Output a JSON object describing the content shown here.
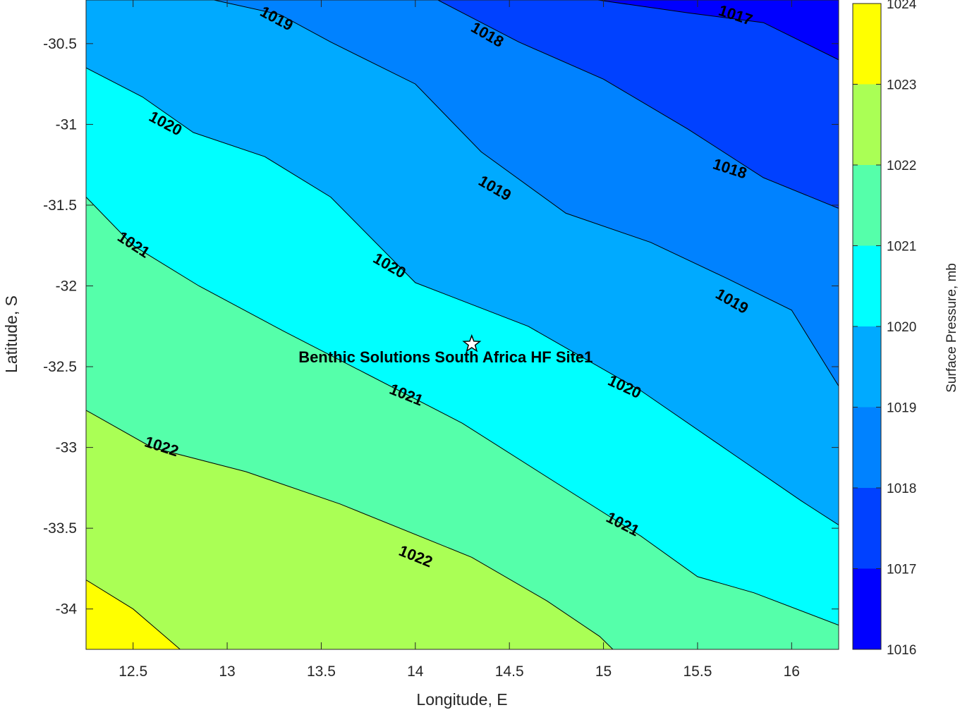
{
  "chart_data": {
    "type": "contour",
    "xlabel": "Longitude, E",
    "ylabel": "Latitude, S",
    "xlim": [
      12.25,
      16.25
    ],
    "ylim": [
      -34.25,
      -30.23
    ],
    "xticks": [
      12.5,
      13,
      13.5,
      14,
      14.5,
      15,
      15.5,
      16
    ],
    "xtick_labels": [
      "12.5",
      "13",
      "13.5",
      "14",
      "14.5",
      "15",
      "15.5",
      "16"
    ],
    "yticks": [
      -30.5,
      -31,
      -31.5,
      -32,
      -32.5,
      -33,
      -33.5,
      -34
    ],
    "ytick_labels": [
      "-30.5",
      "-31",
      "-31.5",
      "-32",
      "-32.5",
      "-33",
      "-33.5",
      "-34"
    ],
    "colorbar": {
      "label": "Surface Pressure, mb",
      "min": 1016,
      "max": 1024,
      "ticks": [
        1016,
        1017,
        1018,
        1019,
        1020,
        1021,
        1022,
        1023,
        1024
      ],
      "tick_labels": [
        "1016",
        "1017",
        "1018",
        "1019",
        "1020",
        "1021",
        "1022",
        "1023",
        "1024"
      ],
      "colors": [
        "#0000ff",
        "#0041ff",
        "#0082ff",
        "#00aaff",
        "#00ffff",
        "#55ffaa",
        "#aaff55",
        "#ffff00",
        "#ffaa00",
        "#ff5500"
      ]
    },
    "levels": [
      {
        "value": 1017,
        "points": [
          [
            14.97,
            -30.23
          ],
          [
            15.45,
            -30.31
          ],
          [
            15.85,
            -30.37
          ],
          [
            16.25,
            -30.6
          ]
        ]
      },
      {
        "value": 1018,
        "points": [
          [
            14.12,
            -30.23
          ],
          [
            14.55,
            -30.49
          ],
          [
            15.0,
            -30.72
          ],
          [
            15.45,
            -31.03
          ],
          [
            15.85,
            -31.33
          ],
          [
            16.25,
            -31.52
          ]
        ]
      },
      {
        "value": 1019,
        "points": [
          [
            12.93,
            -30.23
          ],
          [
            13.28,
            -30.32
          ],
          [
            13.55,
            -30.49
          ],
          [
            14.0,
            -30.75
          ],
          [
            14.35,
            -31.17
          ],
          [
            14.8,
            -31.55
          ],
          [
            15.25,
            -31.73
          ],
          [
            15.65,
            -31.95
          ],
          [
            16.0,
            -32.15
          ],
          [
            16.25,
            -32.62
          ]
        ]
      },
      {
        "value": 1020,
        "points": [
          [
            12.25,
            -30.65
          ],
          [
            12.55,
            -30.83
          ],
          [
            12.82,
            -31.05
          ],
          [
            13.2,
            -31.2
          ],
          [
            13.55,
            -31.45
          ],
          [
            14.0,
            -31.98
          ],
          [
            14.6,
            -32.25
          ],
          [
            15.2,
            -32.65
          ],
          [
            15.7,
            -33.05
          ],
          [
            16.05,
            -33.33
          ],
          [
            16.25,
            -33.48
          ]
        ]
      },
      {
        "value": 1021,
        "points": [
          [
            12.25,
            -31.45
          ],
          [
            12.5,
            -31.75
          ],
          [
            12.85,
            -32.0
          ],
          [
            13.3,
            -32.28
          ],
          [
            13.75,
            -32.55
          ],
          [
            14.25,
            -32.85
          ],
          [
            14.75,
            -33.22
          ],
          [
            15.2,
            -33.55
          ],
          [
            15.5,
            -33.8
          ],
          [
            15.8,
            -33.9
          ],
          [
            16.25,
            -34.1
          ]
        ]
      },
      {
        "value": 1022,
        "points": [
          [
            12.25,
            -32.77
          ],
          [
            12.6,
            -33.0
          ],
          [
            13.1,
            -33.15
          ],
          [
            13.6,
            -33.35
          ],
          [
            14.3,
            -33.68
          ],
          [
            14.7,
            -33.95
          ],
          [
            14.98,
            -34.17
          ],
          [
            15.05,
            -34.25
          ]
        ]
      },
      {
        "value": 1023,
        "points": [
          [
            12.25,
            -33.82
          ],
          [
            12.5,
            -34.0
          ],
          [
            12.75,
            -34.25
          ]
        ]
      }
    ],
    "contour_labels": [
      {
        "text": "1017",
        "x": 15.7,
        "y": -30.33,
        "angle": 18
      },
      {
        "text": "1018",
        "x": 14.38,
        "y": -30.45,
        "angle": 30
      },
      {
        "text": "1018",
        "x": 15.67,
        "y": -31.28,
        "angle": 18
      },
      {
        "text": "1019",
        "x": 13.26,
        "y": -30.35,
        "angle": 28
      },
      {
        "text": "1019",
        "x": 14.42,
        "y": -31.4,
        "angle": 30
      },
      {
        "text": "1019",
        "x": 15.68,
        "y": -32.1,
        "angle": 30
      },
      {
        "text": "1020",
        "x": 12.67,
        "y": -31.0,
        "angle": 28
      },
      {
        "text": "1020",
        "x": 13.86,
        "y": -31.88,
        "angle": 30
      },
      {
        "text": "1020",
        "x": 15.11,
        "y": -32.63,
        "angle": 25
      },
      {
        "text": "1021",
        "x": 12.5,
        "y": -31.75,
        "angle": 33
      },
      {
        "text": "1021",
        "x": 13.95,
        "y": -32.68,
        "angle": 22
      },
      {
        "text": "1021",
        "x": 15.1,
        "y": -33.48,
        "angle": 27
      },
      {
        "text": "1022",
        "x": 12.65,
        "y": -33.0,
        "angle": 18
      },
      {
        "text": "1022",
        "x": 14.0,
        "y": -33.68,
        "angle": 22
      }
    ],
    "annotations": [
      {
        "text": "Benthic Solutions South Africa HF Site1",
        "marker": "star",
        "x": 14.3,
        "y": -32.36
      }
    ]
  }
}
